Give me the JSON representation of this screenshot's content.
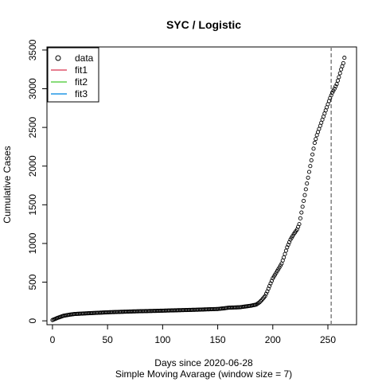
{
  "chart_data": {
    "type": "scatter",
    "title": "SYC / Logistic",
    "xlabel": "Days since 2020-06-28",
    "xlabel2": "Simple Moving Avarage (window size = 7)",
    "ylabel": "Cumulative Cases",
    "xlim": [
      -5,
      276
    ],
    "ylim": [
      -50,
      3540
    ],
    "xticks": [
      0,
      50,
      100,
      150,
      200,
      250
    ],
    "yticks": [
      0,
      500,
      1000,
      1500,
      2000,
      2500,
      3000,
      3500
    ],
    "vline": {
      "x": 253,
      "style": "dashed",
      "color": "#808080"
    },
    "legend": {
      "position": "top-left",
      "entries": [
        {
          "label": "data",
          "kind": "point",
          "color": "#000000"
        },
        {
          "label": "fit1",
          "kind": "line",
          "color": "#DF536B"
        },
        {
          "label": "fit2",
          "kind": "line",
          "color": "#61D04F"
        },
        {
          "label": "fit3",
          "kind": "line",
          "color": "#2297E6"
        }
      ]
    },
    "series": [
      {
        "marker": "open-circle",
        "color": "#000000",
        "points": [
          [
            0,
            10
          ],
          [
            5,
            40
          ],
          [
            10,
            65
          ],
          [
            15,
            78
          ],
          [
            20,
            88
          ],
          [
            30,
            96
          ],
          [
            40,
            103
          ],
          [
            50,
            110
          ],
          [
            60,
            115
          ],
          [
            70,
            120
          ],
          [
            80,
            124
          ],
          [
            90,
            127
          ],
          [
            100,
            131
          ],
          [
            110,
            135
          ],
          [
            120,
            139
          ],
          [
            130,
            143
          ],
          [
            140,
            148
          ],
          [
            150,
            153
          ],
          [
            155,
            160
          ],
          [
            160,
            170
          ],
          [
            170,
            175
          ],
          [
            175,
            185
          ],
          [
            180,
            195
          ],
          [
            185,
            210
          ],
          [
            188,
            240
          ],
          [
            190,
            270
          ],
          [
            193,
            320
          ],
          [
            195,
            380
          ],
          [
            197,
            450
          ],
          [
            200,
            550
          ],
          [
            203,
            620
          ],
          [
            206,
            690
          ],
          [
            208,
            740
          ],
          [
            210,
            820
          ],
          [
            213,
            950
          ],
          [
            216,
            1050
          ],
          [
            219,
            1120
          ],
          [
            222,
            1180
          ],
          [
            224,
            1250
          ],
          [
            226,
            1400
          ],
          [
            228,
            1550
          ],
          [
            230,
            1700
          ],
          [
            232,
            1850
          ],
          [
            234,
            2000
          ],
          [
            236,
            2150
          ],
          [
            238,
            2300
          ],
          [
            240,
            2400
          ],
          [
            242,
            2480
          ],
          [
            244,
            2560
          ],
          [
            246,
            2640
          ],
          [
            248,
            2720
          ],
          [
            250,
            2800
          ],
          [
            252,
            2880
          ],
          [
            254,
            2950
          ],
          [
            256,
            3000
          ],
          [
            258,
            3060
          ],
          [
            260,
            3150
          ],
          [
            262,
            3250
          ],
          [
            264,
            3330
          ],
          [
            265,
            3400
          ]
        ]
      }
    ]
  }
}
